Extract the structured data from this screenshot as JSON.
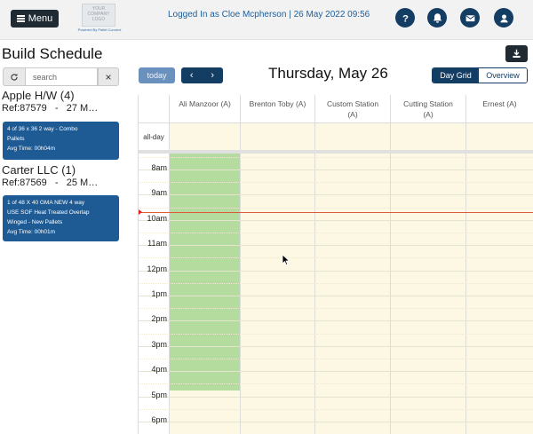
{
  "header": {
    "menu_label": "Menu",
    "logo_text": "YOUR COMPANY LOGO",
    "logo_sub": "Powered By Pallet Connect",
    "logged_in_text": "Logged In as Cloe Mcpherson | 26 May 2022 09:56",
    "icons": [
      "help-icon",
      "bell-icon",
      "mail-icon",
      "user-icon"
    ]
  },
  "sidebar": {
    "page_title": "Build Schedule",
    "search": {
      "placeholder": "search",
      "value": ""
    },
    "clear_label": "×",
    "groups": [
      {
        "name": "Apple H/W (4)",
        "ref": "Ref:87579   -   27 M…",
        "card": {
          "line1": "4 of 36 x 36 2 way - Combo",
          "line2": "Pallets",
          "avg": "Avg Time: 00h04m"
        }
      },
      {
        "name": "Carter LLC (1)",
        "ref": "Ref:87569   -   25 M…",
        "card": {
          "line1": "1 of 48 X 40 GMA NEW 4 way",
          "line2": "USE SOF Heat Treated Overlap",
          "line3": "Winged - New Pallets",
          "avg": "Avg Time: 00h01m"
        }
      }
    ]
  },
  "calendar": {
    "today_label": "today",
    "prev_label": "‹",
    "next_label": "›",
    "title": "Thursday, May 26",
    "views": {
      "active": "Day Grid",
      "inactive": "Overview"
    },
    "allday_label": "all-day",
    "columns": [
      {
        "line1": "Ali Manzoor (A)",
        "line2": ""
      },
      {
        "line1": "Brenton Toby (A)",
        "line2": ""
      },
      {
        "line1": "Custom Station",
        "line2": "(A)"
      },
      {
        "line1": "Cutting Station",
        "line2": "(A)"
      },
      {
        "line1": "Ernest (A)",
        "line2": ""
      }
    ],
    "time_labels": [
      "8am",
      "9am",
      "10am",
      "11am",
      "12pm",
      "1pm",
      "2pm",
      "3pm",
      "4pm",
      "5pm",
      "6pm"
    ],
    "colors": {
      "slot_bg": "#fcf8e3",
      "busy_block": "#b5dc9f",
      "now_indicator": "#e0573a",
      "primary": "#143d63",
      "card": "#1e5b94"
    }
  }
}
